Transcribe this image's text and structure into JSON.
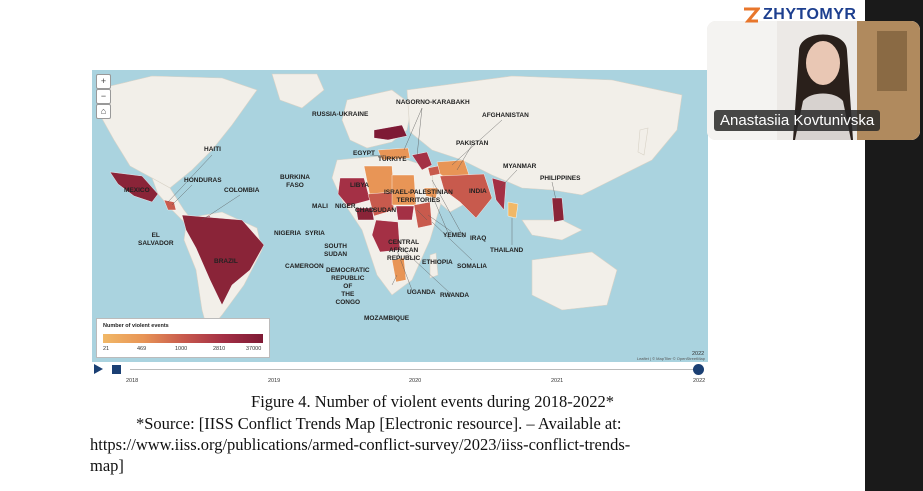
{
  "brand": {
    "name": "ZHYTOMYR",
    "logo_icon": "z-logo-icon",
    "color": "#1d3f8f"
  },
  "map": {
    "zoom_controls": [
      "+",
      "−",
      "⌂"
    ],
    "labels": {
      "russia_ukraine": "RUSSIA-UKRAINE",
      "nagorno_karabakh": "NAGORNO-KARABAKH",
      "afghanistan": "AFGHANISTAN",
      "haiti": "HAITI",
      "egypt": "EGYPT",
      "turkiye": "TÜRKIYE",
      "pakistan": "PAKISTAN",
      "myanmar": "MYANMAR",
      "honduras": "HONDURAS",
      "burkina_faso": "BURKINA\nFASO",
      "libya": "LIBYA",
      "philippines": "PHILIPPINES",
      "colombia": "COLOMBIA",
      "mexico": "MEXICO",
      "israel_palestinian": "ISRAEL-PALESTINIAN\nTERRITORIES",
      "india": "INDIA",
      "mali": "MALI",
      "niger": "NIGER",
      "chad": "CHAD",
      "sudan": "SUDAN",
      "el_salvador": "EL\nSALVADOR",
      "nigeria": "NIGERIA",
      "syria": "SYRIA",
      "yemen": "YEMEN",
      "iraq": "IRAQ",
      "thailand": "THAILAND",
      "south_sudan": "SOUTH\nSUDAN",
      "central_african_republic": "CENTRAL\nAFRICAN\nREPUBLIC",
      "ethiopia": "ETHIOPIA",
      "somalia": "SOMALIA",
      "brazil": "BRAZIL",
      "cameroon": "CAMEROON",
      "drc": "DEMOCRATIC\nREPUBLIC\nOF\nTHE\nCONGO",
      "uganda": "UGANDA",
      "rwanda": "RWANDA",
      "mozambique": "MOZAMBIQUE"
    },
    "legend": {
      "title": "Number of violent events",
      "ticks": [
        "21",
        "469",
        "1000",
        "2810",
        "37000"
      ]
    },
    "attribution": "Leaflet | © MapTiler © OpenStreetMap",
    "colors": {
      "ocean": "#aad3df",
      "land": "#f2efe9",
      "low": "#f1b867",
      "high": "#7e1a35"
    }
  },
  "timeline": {
    "years": [
      "2018",
      "2019",
      "2020",
      "2021",
      "2022"
    ],
    "current": "2022"
  },
  "caption": "Figure 4. Number of violent events during 2018-2022*",
  "source": {
    "line1": "*Source: [IISS Conflict Trends Map [Electronic resource]. – Available at:",
    "line2": "https://www.iiss.org/publications/armed-conflict-survey/2023/iiss-conflict-trends-",
    "line3": "map]"
  },
  "webcam": {
    "participant_name": "Anastasiia Kovtunivska"
  }
}
